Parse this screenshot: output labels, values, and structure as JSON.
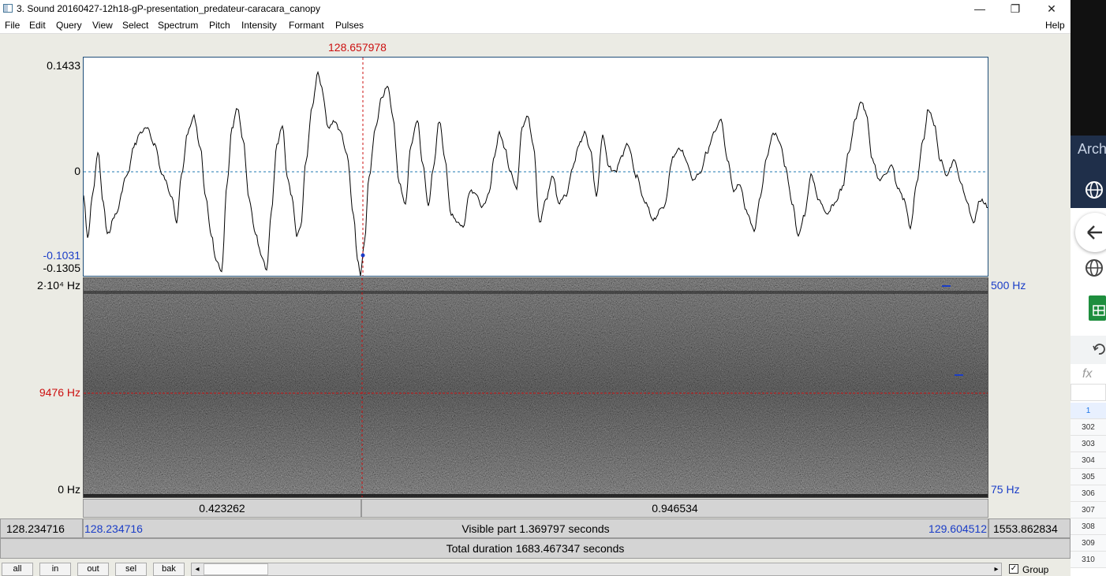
{
  "window": {
    "title": "3. Sound 20160427-12h18-gP-presentation_predateur-caracara_canopy",
    "minimize": "—",
    "maximize": "❐",
    "close": "✕"
  },
  "menu": [
    "File",
    "Edit",
    "Query",
    "View",
    "Select",
    "Spectrum",
    "Pitch",
    "Intensity",
    "Formant",
    "Pulses"
  ],
  "help": "Help",
  "cursor_time": "128.657978",
  "waveform": {
    "ymax": "0.1433",
    "zero": "0",
    "cursor_value": "-0.1031",
    "ymin": "-0.1305"
  },
  "spectrogram": {
    "ymax": "2·10⁴ Hz",
    "cursor_freq": "9476 Hz",
    "ymin": "0 Hz",
    "pitch_max": "500 Hz",
    "pitch_min": "75 Hz"
  },
  "selection": {
    "left_duration": "0.423262",
    "right_duration": "0.946534"
  },
  "visible": {
    "window_start": "128.234716",
    "start": "128.234716",
    "label": "Visible part 1.369797 seconds",
    "end": "129.604512",
    "remaining": "1553.862834"
  },
  "total": "Total duration 1683.467347 seconds",
  "buttons": [
    "all",
    "in",
    "out",
    "sel",
    "bak"
  ],
  "group_label": "Group",
  "group_checked": "✓",
  "scroll_left": "◂",
  "scroll_right": "▸",
  "side": {
    "text": "Arch",
    "fx": "fx",
    "rows": [
      "1",
      "302",
      "303",
      "304",
      "305",
      "306",
      "307",
      "308",
      "309",
      "310"
    ]
  },
  "colors": {
    "cursor": "#cc1010",
    "axis_blue": "#1a3dc7",
    "wave": "#000000"
  }
}
